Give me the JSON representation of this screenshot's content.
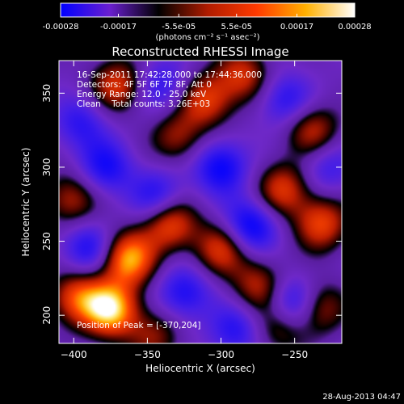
{
  "chart_data": {
    "type": "heatmap",
    "title": "Reconstructed RHESSI Image",
    "xlabel": "Heliocentric X (arcsec)",
    "ylabel": "Heliocentric Y (arcsec)",
    "xlim": [
      -410,
      -218
    ],
    "ylim": [
      181,
      372
    ],
    "x_ticks": [
      -400,
      -350,
      -300,
      -250
    ],
    "y_ticks": [
      200,
      250,
      300,
      350
    ],
    "colorbar": {
      "min": -0.00028,
      "max": 0.00028,
      "tick_values": [
        -0.00028,
        -0.00017,
        -5.5e-05,
        5.5e-05,
        0.00017,
        0.00028
      ],
      "tick_labels": [
        "-0.00028",
        "-0.00017",
        "-5.5e-05",
        "5.5e-05",
        "0.00017",
        "0.00028"
      ],
      "unit_label": "(photons cm⁻² s⁻¹ asec⁻²)",
      "colors": [
        "#0000ff",
        "#6a1fd0",
        "#000000",
        "#b01c00",
        "#ff3a00",
        "#ffb000",
        "#ffffff"
      ]
    },
    "info_lines": [
      "16-Sep-2011 17:42:28.000 to 17:44:36.000",
      "Detectors: 4F 5F 6F 7F 8F, Att 0",
      "Energy Range: 12.0 - 25.0 keV",
      "Clean    Total counts: 3.26E+03"
    ],
    "peak_text": "Position of Peak = [-370,204]",
    "peak_position": [
      -370,
      204
    ],
    "blobs": [
      {
        "x": -375,
        "y": 204,
        "v": 1.0
      },
      {
        "x": -363,
        "y": 238,
        "v": 0.9
      },
      {
        "x": -335,
        "y": 262,
        "v": 0.7
      },
      {
        "x": -398,
        "y": 212,
        "v": 0.65
      },
      {
        "x": -300,
        "y": 245,
        "v": 0.6
      },
      {
        "x": -258,
        "y": 285,
        "v": 0.6
      },
      {
        "x": -232,
        "y": 262,
        "v": 0.65
      },
      {
        "x": -235,
        "y": 205,
        "v": 0.6
      },
      {
        "x": -238,
        "y": 325,
        "v": 0.55
      },
      {
        "x": -310,
        "y": 345,
        "v": 0.6
      },
      {
        "x": -285,
        "y": 362,
        "v": 0.55
      },
      {
        "x": -370,
        "y": 355,
        "v": 0.6
      },
      {
        "x": -402,
        "y": 278,
        "v": 0.5
      },
      {
        "x": -275,
        "y": 220,
        "v": 0.5
      },
      {
        "x": -330,
        "y": 320,
        "v": 0.45
      },
      {
        "x": -260,
        "y": 192,
        "v": 0.45
      },
      {
        "x": -345,
        "y": 186,
        "v": 0.4
      },
      {
        "x": -378,
        "y": 300,
        "v": -0.5
      },
      {
        "x": -300,
        "y": 300,
        "v": -0.6
      },
      {
        "x": -280,
        "y": 260,
        "v": -0.65
      },
      {
        "x": -250,
        "y": 207,
        "v": -0.7
      },
      {
        "x": -325,
        "y": 215,
        "v": -0.5
      },
      {
        "x": -390,
        "y": 245,
        "v": -0.5
      },
      {
        "x": -343,
        "y": 280,
        "v": -0.5
      },
      {
        "x": -256,
        "y": 345,
        "v": -0.45
      },
      {
        "x": -340,
        "y": 355,
        "v": -0.4
      },
      {
        "x": -290,
        "y": 190,
        "v": -0.45
      },
      {
        "x": -395,
        "y": 330,
        "v": -0.4
      },
      {
        "x": -228,
        "y": 300,
        "v": -0.35
      }
    ]
  },
  "footer_timestamp": "28-Aug-2013 04:47"
}
